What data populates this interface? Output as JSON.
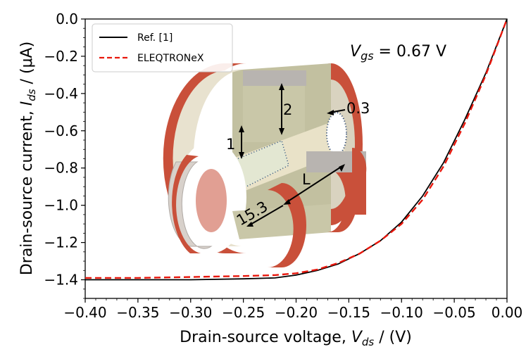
{
  "chart_data": {
    "type": "line",
    "xlabel": "Drain-source voltage, V_ds / (V)",
    "ylabel": "Drain-source current, I_ds / (μA)",
    "xlim": [
      -0.4,
      0.0
    ],
    "ylim": [
      -1.5,
      0.0
    ],
    "x_ticks": [
      "−0.40",
      "−0.35",
      "−0.30",
      "−0.25",
      "−0.20",
      "−0.15",
      "−0.10",
      "−0.05",
      "0.00"
    ],
    "y_ticks": [
      "0.0",
      "−0.2",
      "−0.4",
      "−0.6",
      "−0.8",
      "−1.0",
      "−1.2",
      "−1.4"
    ],
    "legend_position": "top-left",
    "grid": false,
    "annotation": "V_gs = 0.67 V",
    "series": [
      {
        "name": "Ref. [1]",
        "color": "#000000",
        "style": "solid",
        "x": [
          -0.4,
          -0.35,
          -0.3,
          -0.25,
          -0.22,
          -0.2,
          -0.18,
          -0.16,
          -0.14,
          -0.12,
          -0.1,
          -0.08,
          -0.06,
          -0.04,
          -0.02,
          0.0
        ],
        "y": [
          -1.4,
          -1.4,
          -1.4,
          -1.395,
          -1.39,
          -1.375,
          -1.35,
          -1.315,
          -1.26,
          -1.19,
          -1.09,
          -0.95,
          -0.77,
          -0.54,
          -0.29,
          0.0
        ]
      },
      {
        "name": "ELEQTRONeX",
        "color": "#e8170c",
        "style": "dashed",
        "x": [
          -0.4,
          -0.35,
          -0.3,
          -0.25,
          -0.22,
          -0.2,
          -0.18,
          -0.16,
          -0.14,
          -0.12,
          -0.1,
          -0.08,
          -0.06,
          -0.04,
          -0.02,
          0.0
        ],
        "y": [
          -1.39,
          -1.39,
          -1.385,
          -1.38,
          -1.375,
          -1.365,
          -1.345,
          -1.31,
          -1.26,
          -1.19,
          -1.1,
          -0.97,
          -0.79,
          -0.56,
          -0.3,
          0.0
        ]
      }
    ]
  },
  "inset": {
    "dim_1": "1",
    "dim_2": "2",
    "dim_03": "0.3",
    "dim_L": "L",
    "dim_153": "15.3"
  }
}
